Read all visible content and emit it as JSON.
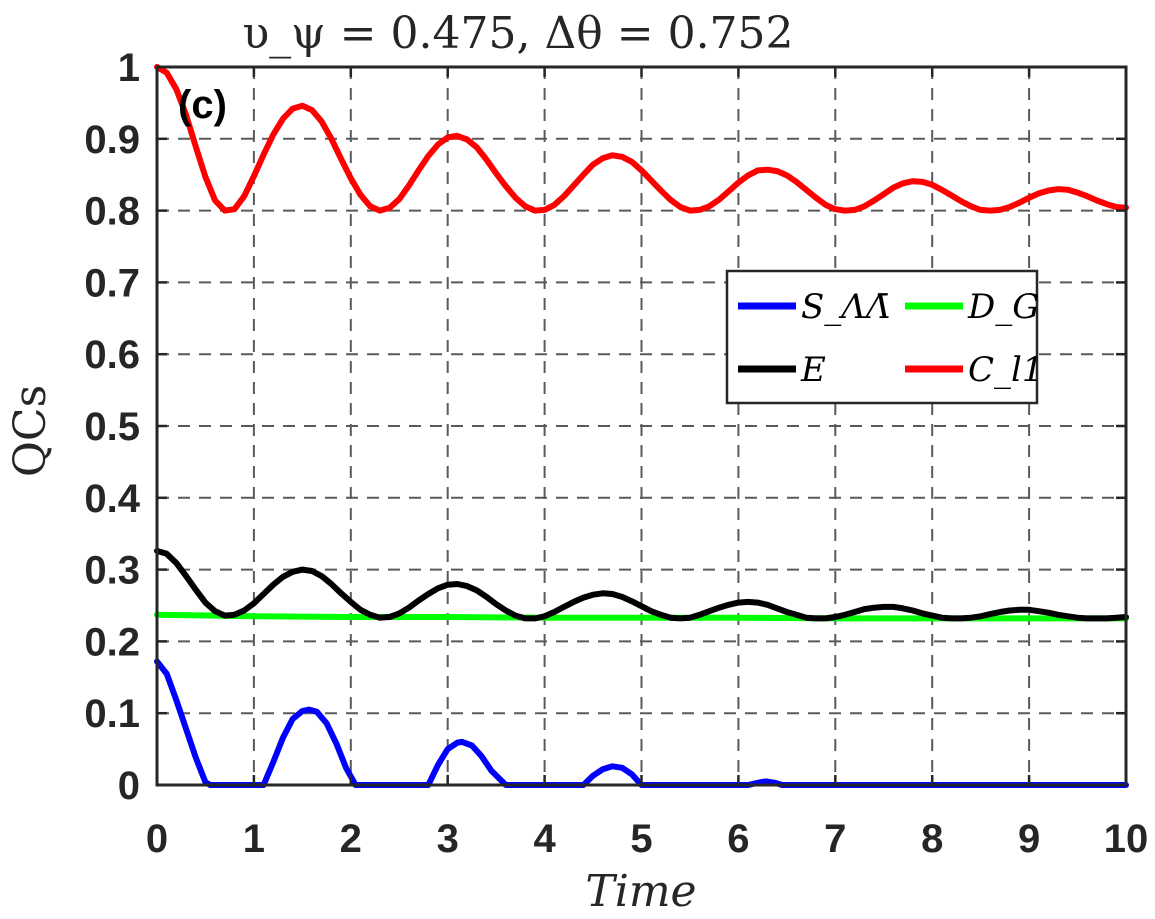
{
  "chart_data": {
    "type": "line",
    "title": "υ_ψ = 0.475, Δθ = 0.752",
    "panel_label": "(c)",
    "xlabel": "Time",
    "ylabel": "QCs",
    "xlim": [
      0,
      10
    ],
    "ylim": [
      0,
      1
    ],
    "xticks": [
      "0",
      "1",
      "2",
      "3",
      "4",
      "5",
      "6",
      "7",
      "8",
      "9",
      "10"
    ],
    "yticks": [
      "0",
      "0.1",
      "0.2",
      "0.3",
      "0.4",
      "0.5",
      "0.6",
      "0.7",
      "0.8",
      "0.9",
      "1"
    ],
    "grid": true,
    "legend_position": "right",
    "series": [
      {
        "name": "S_ΛΛ̄",
        "color": "#0000ff",
        "x": [
          0,
          0.1,
          0.2,
          0.3,
          0.4,
          0.5,
          0.55,
          1.1,
          1.2,
          1.3,
          1.4,
          1.5,
          1.57,
          1.65,
          1.75,
          1.85,
          1.95,
          2.05,
          2.8,
          2.9,
          3.0,
          3.1,
          3.15,
          3.25,
          3.35,
          3.45,
          3.6,
          4.4,
          4.5,
          4.6,
          4.7,
          4.8,
          4.9,
          5.0,
          6.1,
          6.2,
          6.28,
          6.38,
          6.45,
          10
        ],
        "y": [
          0.172,
          0.155,
          0.118,
          0.078,
          0.038,
          0.004,
          0,
          0,
          0.032,
          0.066,
          0.092,
          0.103,
          0.105,
          0.102,
          0.086,
          0.058,
          0.024,
          0,
          0,
          0.028,
          0.05,
          0.059,
          0.06,
          0.055,
          0.04,
          0.02,
          0,
          0,
          0.013,
          0.022,
          0.026,
          0.024,
          0.015,
          0,
          0,
          0.003,
          0.005,
          0.003,
          0,
          0
        ]
      },
      {
        "name": "D_G",
        "color": "#00ff00",
        "x": [
          0,
          1,
          2,
          3,
          4,
          5,
          6,
          7,
          8,
          9,
          10
        ],
        "y": [
          0.237,
          0.235,
          0.234,
          0.234,
          0.233,
          0.233,
          0.233,
          0.232,
          0.232,
          0.232,
          0.232
        ]
      },
      {
        "name": "E",
        "color": "#000000",
        "x": [
          0,
          0.1,
          0.2,
          0.3,
          0.4,
          0.5,
          0.6,
          0.7,
          0.8,
          0.9,
          1.0,
          1.1,
          1.2,
          1.3,
          1.4,
          1.5,
          1.6,
          1.7,
          1.8,
          1.9,
          2.0,
          2.1,
          2.2,
          2.3,
          2.4,
          2.5,
          2.6,
          2.7,
          2.8,
          2.9,
          3.0,
          3.1,
          3.2,
          3.3,
          3.4,
          3.5,
          3.6,
          3.7,
          3.8,
          3.9,
          4.0,
          4.1,
          4.2,
          4.3,
          4.4,
          4.5,
          4.6,
          4.7,
          4.8,
          4.9,
          5.0,
          5.1,
          5.2,
          5.3,
          5.4,
          5.5,
          5.6,
          5.7,
          5.8,
          5.9,
          6.0,
          6.1,
          6.2,
          6.3,
          6.4,
          6.5,
          6.6,
          6.7,
          6.8,
          6.9,
          7.0,
          7.1,
          7.2,
          7.3,
          7.4,
          7.5,
          7.6,
          7.7,
          7.8,
          7.9,
          8.0,
          8.1,
          8.2,
          8.3,
          8.4,
          8.5,
          8.6,
          8.7,
          8.8,
          8.9,
          9.0,
          9.1,
          9.2,
          9.3,
          9.4,
          9.5,
          9.6,
          9.7,
          9.8,
          9.9,
          10.0
        ],
        "y": [
          0.326,
          0.322,
          0.309,
          0.291,
          0.272,
          0.254,
          0.242,
          0.236,
          0.237,
          0.243,
          0.253,
          0.266,
          0.279,
          0.29,
          0.297,
          0.3,
          0.298,
          0.291,
          0.28,
          0.267,
          0.255,
          0.244,
          0.237,
          0.233,
          0.234,
          0.239,
          0.247,
          0.257,
          0.266,
          0.274,
          0.279,
          0.28,
          0.277,
          0.271,
          0.262,
          0.252,
          0.243,
          0.236,
          0.232,
          0.232,
          0.235,
          0.241,
          0.248,
          0.255,
          0.261,
          0.265,
          0.267,
          0.266,
          0.262,
          0.256,
          0.249,
          0.242,
          0.237,
          0.233,
          0.232,
          0.233,
          0.237,
          0.242,
          0.247,
          0.251,
          0.254,
          0.255,
          0.254,
          0.251,
          0.246,
          0.241,
          0.237,
          0.233,
          0.232,
          0.232,
          0.234,
          0.237,
          0.241,
          0.245,
          0.247,
          0.248,
          0.248,
          0.246,
          0.243,
          0.239,
          0.236,
          0.233,
          0.232,
          0.232,
          0.233,
          0.235,
          0.238,
          0.241,
          0.243,
          0.244,
          0.244,
          0.242,
          0.24,
          0.237,
          0.235,
          0.233,
          0.232,
          0.232,
          0.232,
          0.233,
          0.234
        ]
      },
      {
        "name": "C_l1",
        "color": "#ff0000",
        "x": [
          0,
          0.1,
          0.2,
          0.3,
          0.4,
          0.5,
          0.6,
          0.7,
          0.8,
          0.9,
          1.0,
          1.1,
          1.2,
          1.3,
          1.4,
          1.5,
          1.6,
          1.7,
          1.8,
          1.9,
          2.0,
          2.1,
          2.2,
          2.3,
          2.4,
          2.5,
          2.6,
          2.7,
          2.8,
          2.9,
          3.0,
          3.1,
          3.2,
          3.3,
          3.4,
          3.5,
          3.6,
          3.7,
          3.8,
          3.9,
          4.0,
          4.1,
          4.2,
          4.3,
          4.4,
          4.5,
          4.6,
          4.7,
          4.8,
          4.9,
          5.0,
          5.1,
          5.2,
          5.3,
          5.4,
          5.5,
          5.6,
          5.7,
          5.8,
          5.9,
          6.0,
          6.1,
          6.2,
          6.3,
          6.4,
          6.5,
          6.6,
          6.7,
          6.8,
          6.9,
          7.0,
          7.1,
          7.2,
          7.3,
          7.4,
          7.5,
          7.6,
          7.7,
          7.8,
          7.9,
          8.0,
          8.1,
          8.2,
          8.3,
          8.4,
          8.5,
          8.6,
          8.7,
          8.8,
          8.9,
          9.0,
          9.1,
          9.2,
          9.3,
          9.4,
          9.5,
          9.6,
          9.7,
          9.8,
          9.9,
          10.0
        ],
        "y": [
          1.0,
          0.992,
          0.969,
          0.933,
          0.889,
          0.847,
          0.814,
          0.8,
          0.802,
          0.82,
          0.848,
          0.878,
          0.906,
          0.928,
          0.942,
          0.946,
          0.94,
          0.924,
          0.9,
          0.872,
          0.845,
          0.822,
          0.806,
          0.8,
          0.804,
          0.816,
          0.835,
          0.856,
          0.876,
          0.892,
          0.902,
          0.904,
          0.899,
          0.888,
          0.871,
          0.852,
          0.834,
          0.818,
          0.806,
          0.8,
          0.801,
          0.808,
          0.82,
          0.835,
          0.85,
          0.864,
          0.873,
          0.877,
          0.875,
          0.868,
          0.856,
          0.842,
          0.828,
          0.815,
          0.805,
          0.8,
          0.801,
          0.806,
          0.815,
          0.827,
          0.839,
          0.849,
          0.856,
          0.857,
          0.855,
          0.849,
          0.84,
          0.829,
          0.818,
          0.808,
          0.802,
          0.8,
          0.801,
          0.806,
          0.814,
          0.823,
          0.832,
          0.838,
          0.841,
          0.84,
          0.836,
          0.829,
          0.821,
          0.813,
          0.806,
          0.801,
          0.8,
          0.801,
          0.805,
          0.811,
          0.818,
          0.824,
          0.828,
          0.83,
          0.829,
          0.825,
          0.82,
          0.814,
          0.809,
          0.805,
          0.804
        ]
      }
    ]
  }
}
